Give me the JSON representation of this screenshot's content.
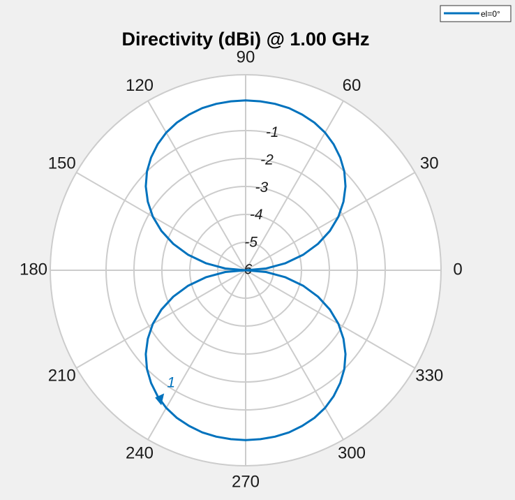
{
  "chart_data": {
    "type": "polar-line",
    "title": "Directivity (dBi) @ 1.00 GHz",
    "angle_ticks": [
      0,
      30,
      60,
      90,
      120,
      150,
      180,
      210,
      240,
      270,
      300,
      330
    ],
    "angle_tick_labels": [
      "0",
      "30",
      "60",
      "90",
      "120",
      "150",
      "180",
      "210",
      "240",
      "270",
      "300",
      "330"
    ],
    "r_ticks": [
      -6,
      -5,
      -4,
      -3,
      -2,
      -1
    ],
    "r_tick_labels": [
      "-6",
      "-5",
      "-4",
      "-3",
      "-2",
      "-1"
    ],
    "r_range": [
      -6,
      1
    ],
    "grid": true,
    "legend_position": "top-right",
    "series": [
      {
        "name": "el=0°",
        "color": "#0072bd",
        "theta_deg": [
          0,
          5,
          10,
          15,
          20,
          25,
          30,
          35,
          40,
          45,
          50,
          55,
          60,
          65,
          70,
          75,
          80,
          85,
          90,
          95,
          100,
          105,
          110,
          115,
          120,
          125,
          130,
          135,
          140,
          145,
          150,
          155,
          160,
          165,
          170,
          175,
          180,
          185,
          190,
          195,
          200,
          205,
          210,
          215,
          220,
          225,
          230,
          235,
          240,
          245,
          250,
          255,
          260,
          265,
          270,
          275,
          280,
          285,
          290,
          295,
          300,
          305,
          310,
          315,
          320,
          325,
          330,
          335,
          340,
          345,
          350,
          355,
          360
        ],
        "r_dbi": [
          -6.0,
          -5.27,
          -4.55,
          -3.87,
          -3.24,
          -2.67,
          -2.16,
          -1.72,
          -1.33,
          -1.0,
          -0.73,
          -0.5,
          -0.31,
          -0.17,
          -0.07,
          0.01,
          0.05,
          0.07,
          0.08,
          0.07,
          0.05,
          0.01,
          -0.07,
          -0.17,
          -0.31,
          -0.5,
          -0.73,
          -1.0,
          -1.33,
          -1.72,
          -2.16,
          -2.67,
          -3.24,
          -3.87,
          -4.55,
          -5.27,
          -6.0,
          -5.27,
          -4.55,
          -3.87,
          -3.24,
          -2.67,
          -2.16,
          -1.72,
          -1.33,
          -1.0,
          -0.73,
          -0.5,
          -0.31,
          -0.17,
          -0.07,
          0.01,
          0.05,
          0.07,
          0.08,
          0.07,
          0.05,
          0.01,
          -0.07,
          -0.17,
          -0.31,
          -0.5,
          -0.73,
          -1.0,
          -1.33,
          -1.72,
          -2.16,
          -2.67,
          -3.24,
          -3.87,
          -4.55,
          -5.27,
          -6.0
        ]
      }
    ],
    "marker": {
      "label": "1",
      "theta_deg": 238,
      "r_dbi": -0.3,
      "color": "#0072bd"
    }
  }
}
